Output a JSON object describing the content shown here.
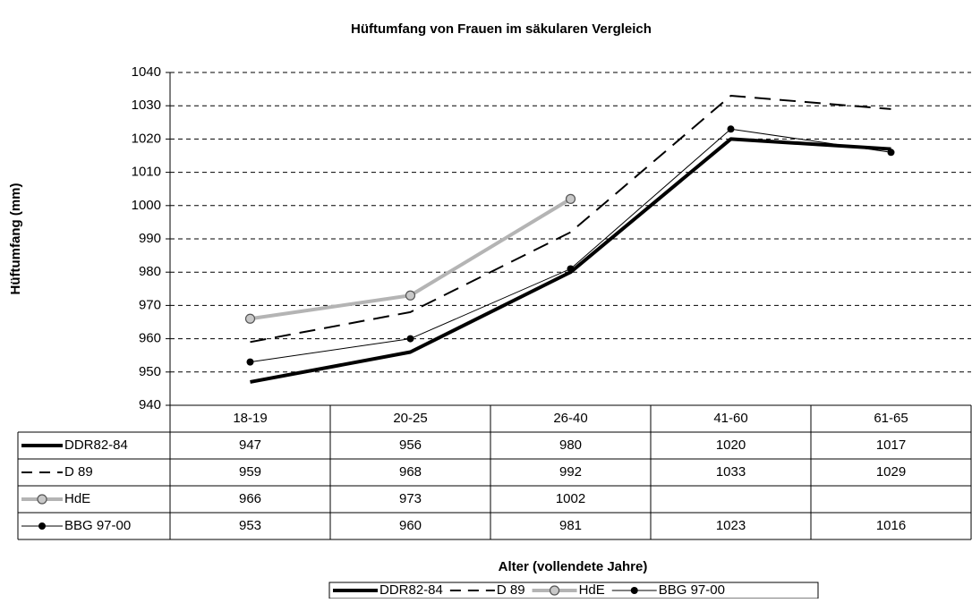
{
  "chart_data": {
    "type": "line",
    "title": "Hüftumfang von Frauen im säkularen Vergleich",
    "x_label": "Alter (vollendete Jahre)",
    "y_label": "Hüftumfang (mm)",
    "categories": [
      "18-19",
      "20-25",
      "26-40",
      "41-60",
      "61-65"
    ],
    "series": [
      {
        "name": "DDR82-84",
        "color": "#000000",
        "style": "solid-thick",
        "values": [
          947,
          956,
          980,
          1020,
          1017
        ]
      },
      {
        "name": "D 89",
        "color": "#000000",
        "style": "dashed",
        "values": [
          959,
          968,
          992,
          1033,
          1029
        ]
      },
      {
        "name": "HdE",
        "color": "#b4b4b4",
        "style": "circle-thick",
        "values": [
          966,
          973,
          1002,
          null,
          null
        ]
      },
      {
        "name": "BBG 97-00",
        "color": "#000000",
        "style": "dot-thin",
        "values": [
          953,
          960,
          981,
          1023,
          1016
        ]
      }
    ],
    "ylim": [
      940,
      1040
    ],
    "yticks": [
      940,
      950,
      960,
      970,
      980,
      990,
      1000,
      1010,
      1020,
      1030,
      1040
    ],
    "grid": true,
    "legend": "bottom",
    "data_table": true
  }
}
